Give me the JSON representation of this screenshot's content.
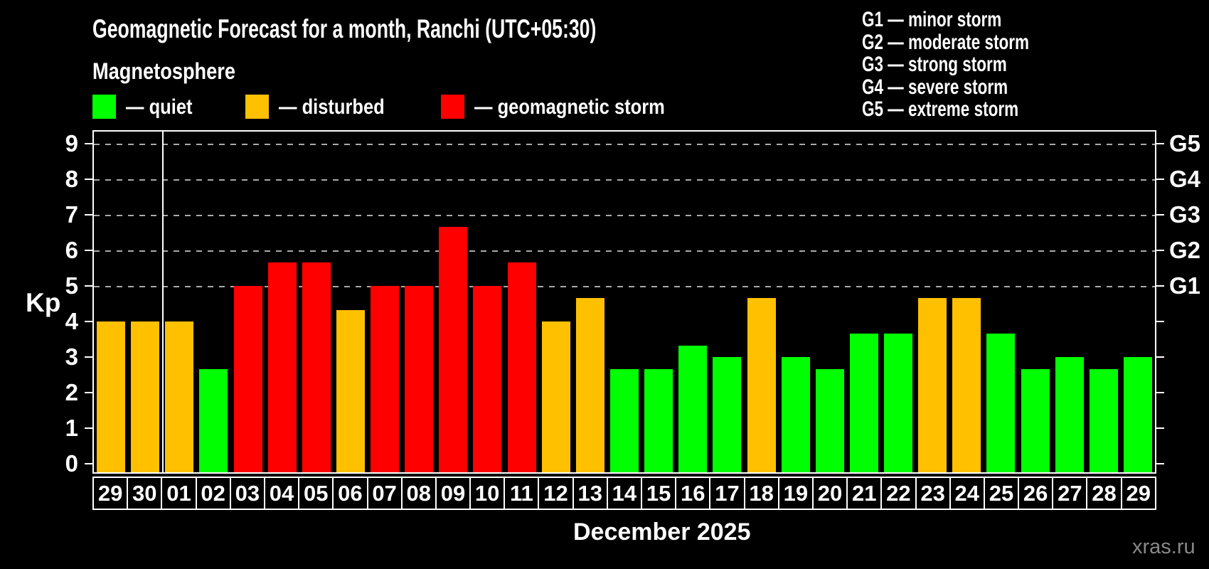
{
  "title": "Geomagnetic Forecast for a month, Ranchi (UTC+05:30)",
  "subtitle": "Magnetosphere",
  "legend": [
    {
      "name": "quiet",
      "label": "— quiet",
      "color": "#00ff00"
    },
    {
      "name": "disturbed",
      "label": "— disturbed",
      "color": "#ffc000"
    },
    {
      "name": "storm",
      "label": "— geomagnetic storm",
      "color": "#ff0000"
    }
  ],
  "storm_scale_legend": [
    "G1 — minor storm",
    "G2 — moderate storm",
    "G3 — strong storm",
    "G4 — severe storm",
    "G5 — extreme storm"
  ],
  "y_axis": {
    "label": "Kp",
    "ticks": [
      0,
      1,
      2,
      3,
      4,
      5,
      6,
      7,
      8,
      9
    ]
  },
  "right_axis": {
    "labels": [
      {
        "kp": 5,
        "text": "G1"
      },
      {
        "kp": 6,
        "text": "G2"
      },
      {
        "kp": 7,
        "text": "G3"
      },
      {
        "kp": 8,
        "text": "G4"
      },
      {
        "kp": 9,
        "text": "G5"
      }
    ]
  },
  "x_axis": {
    "title": "December 2025"
  },
  "watermark": "xras.ru",
  "colors": {
    "background": "#000000",
    "frame": "#ffffff",
    "grid": "#aaaaaa",
    "quiet": "#00ff00",
    "disturbed": "#ffc000",
    "storm": "#ff0000",
    "watermark_text": "#888888"
  },
  "chart_data": {
    "type": "bar",
    "title": "Geomagnetic Forecast for a month, Ranchi (UTC+05:30)",
    "xlabel": "December 2025",
    "ylabel": "Kp",
    "ylim": [
      0,
      9
    ],
    "gridlines_at": [
      5,
      6,
      7,
      8,
      9
    ],
    "legend_position": "top-left",
    "month_boundary_after_index": 1,
    "thresholds": {
      "disturbed_min": 4,
      "storm_min": 5
    },
    "categories": [
      "29",
      "30",
      "01",
      "02",
      "03",
      "04",
      "05",
      "06",
      "07",
      "08",
      "09",
      "10",
      "11",
      "12",
      "13",
      "14",
      "15",
      "16",
      "17",
      "18",
      "19",
      "20",
      "21",
      "22",
      "23",
      "24",
      "25",
      "26",
      "27",
      "28",
      "29"
    ],
    "values": [
      4.0,
      4.0,
      4.0,
      2.67,
      5.0,
      5.67,
      5.67,
      4.33,
      5.0,
      5.0,
      6.67,
      5.0,
      5.67,
      4.0,
      4.67,
      2.67,
      2.67,
      3.33,
      3.0,
      4.67,
      3.0,
      2.67,
      3.67,
      3.67,
      4.67,
      4.67,
      3.67,
      2.67,
      3.0,
      2.67,
      3.0
    ],
    "statuses": [
      "disturbed",
      "disturbed",
      "disturbed",
      "quiet",
      "storm",
      "storm",
      "storm",
      "disturbed",
      "storm",
      "storm",
      "storm",
      "storm",
      "storm",
      "disturbed",
      "disturbed",
      "quiet",
      "quiet",
      "quiet",
      "quiet",
      "disturbed",
      "quiet",
      "quiet",
      "quiet",
      "quiet",
      "disturbed",
      "disturbed",
      "quiet",
      "quiet",
      "quiet",
      "quiet",
      "quiet"
    ]
  }
}
